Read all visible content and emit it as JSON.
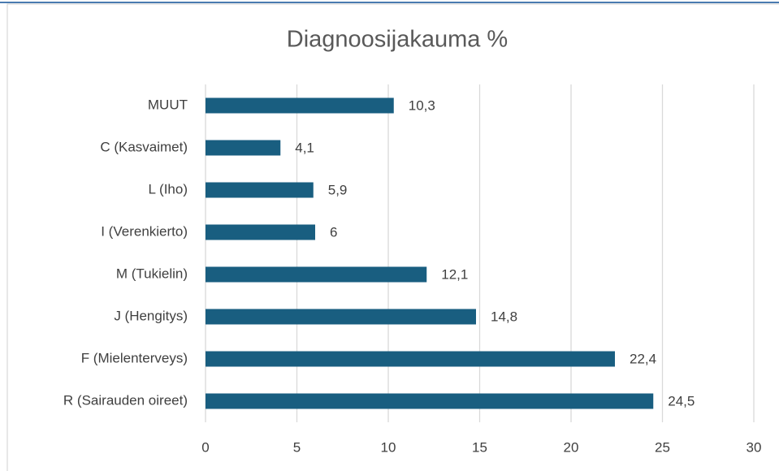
{
  "chart_data": {
    "type": "hbar",
    "title": "Diagnoosijakauma %",
    "categories": [
      "MUUT",
      "C (Kasvaimet)",
      "L (Iho)",
      "I (Verenkierto)",
      "M (Tukielin)",
      "J (Hengitys)",
      "F (Mielenterveys)",
      "R (Sairauden oireet)"
    ],
    "values": [
      10.3,
      4.1,
      5.9,
      6,
      12.1,
      14.8,
      22.4,
      24.5
    ],
    "value_labels": [
      "10,3",
      "4,1",
      "5,9",
      "6",
      "12,1",
      "14,8",
      "22,4",
      "24,5"
    ],
    "color": "#195e80",
    "xlim": [
      0,
      30
    ],
    "xticks": [
      0,
      5,
      10,
      15,
      20,
      25,
      30
    ],
    "grid": true
  }
}
